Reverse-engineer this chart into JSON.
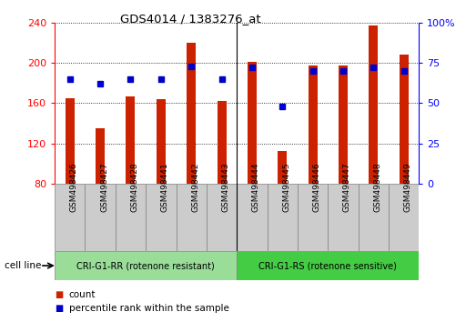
{
  "title": "GDS4014 / 1383276_at",
  "samples": [
    "GSM498426",
    "GSM498427",
    "GSM498428",
    "GSM498441",
    "GSM498442",
    "GSM498443",
    "GSM498444",
    "GSM498445",
    "GSM498446",
    "GSM498447",
    "GSM498448",
    "GSM498449"
  ],
  "counts": [
    165,
    135,
    167,
    164,
    220,
    162,
    201,
    112,
    197,
    197,
    237,
    208
  ],
  "percentile_ranks": [
    65,
    62,
    65,
    65,
    73,
    65,
    72,
    48,
    70,
    70,
    72,
    70
  ],
  "group1_label": "CRI-G1-RR (rotenone resistant)",
  "group2_label": "CRI-G1-RS (rotenone sensitive)",
  "group1_count": 6,
  "group2_count": 6,
  "ymin": 80,
  "ymax": 240,
  "yticks": [
    80,
    120,
    160,
    200,
    240
  ],
  "y2min": 0,
  "y2max": 100,
  "y2ticks": [
    0,
    25,
    50,
    75,
    100
  ],
  "bar_color": "#cc2200",
  "percentile_color": "#0000cc",
  "group1_bg": "#99dd99",
  "group2_bg": "#44cc44",
  "label_bg": "#cccccc",
  "cell_line_label": "cell line",
  "legend_count_label": "count",
  "legend_percentile_label": "percentile rank within the sample",
  "bg_color": "#ffffff",
  "plot_bg": "#ffffff",
  "grid_color": "#000000"
}
